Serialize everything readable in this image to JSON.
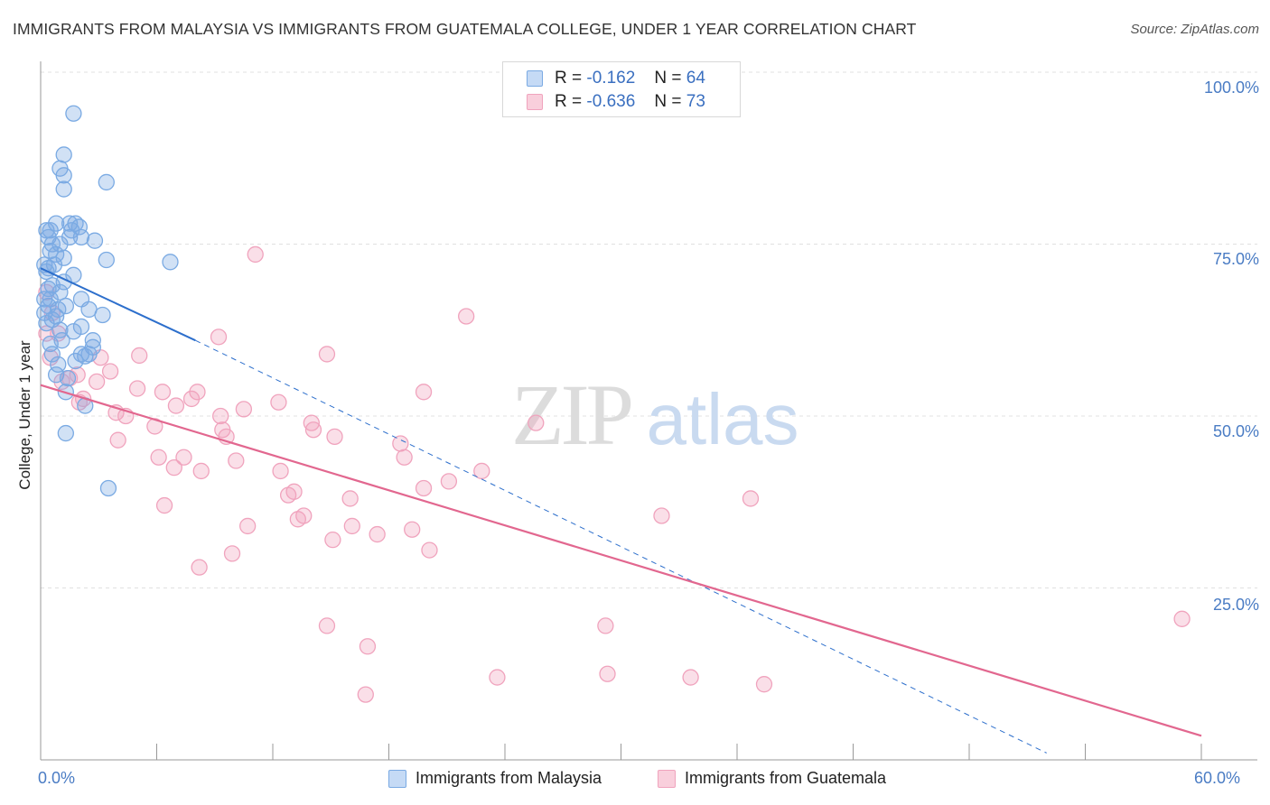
{
  "title": "IMMIGRANTS FROM MALAYSIA VS IMMIGRANTS FROM GUATEMALA COLLEGE, UNDER 1 YEAR CORRELATION CHART",
  "source": "Source: ZipAtlas.com",
  "watermark": {
    "zip": "ZIP",
    "atlas": "atlas"
  },
  "legend_top": [
    {
      "r_label": "R =",
      "r_value": "-0.162",
      "n_label": "N =",
      "n_value": "64"
    },
    {
      "r_label": "R =",
      "r_value": "-0.636",
      "n_label": "N =",
      "n_value": "73"
    }
  ],
  "chart_data": {
    "type": "scatter",
    "xlabel": "",
    "ylabel": "College, Under 1 year",
    "xlim": [
      0,
      60
    ],
    "ylim": [
      0,
      100
    ],
    "x_tick_labels": [
      "0.0%",
      "60.0%"
    ],
    "y_tick_labels": [
      "100.0%",
      "75.0%",
      "50.0%",
      "25.0%"
    ],
    "y_ticks": [
      100,
      75,
      50,
      25
    ],
    "grid": true,
    "legend_position": "bottom",
    "series": [
      {
        "name": "Immigrants from Malaysia",
        "color": "#7aaae3",
        "line_color": "#2d6fcc",
        "r": -0.162,
        "n": 64,
        "trend": {
          "x0": 0,
          "y0": 71.5,
          "x1": 8,
          "y1": 61.0,
          "dash_x1": 52,
          "dash_y1": 1.0
        },
        "points": [
          [
            1.7,
            94
          ],
          [
            1.2,
            88
          ],
          [
            1.0,
            86
          ],
          [
            1.2,
            85
          ],
          [
            1.2,
            83
          ],
          [
            3.4,
            84
          ],
          [
            0.3,
            77
          ],
          [
            0.5,
            77
          ],
          [
            0.8,
            78
          ],
          [
            1.5,
            78
          ],
          [
            1.8,
            78
          ],
          [
            2.0,
            77.5
          ],
          [
            1.6,
            77
          ],
          [
            0.4,
            76
          ],
          [
            0.6,
            75
          ],
          [
            1.0,
            75
          ],
          [
            1.5,
            76
          ],
          [
            2.1,
            76
          ],
          [
            2.8,
            75.5
          ],
          [
            0.5,
            74
          ],
          [
            0.8,
            73.5
          ],
          [
            1.2,
            73
          ],
          [
            3.4,
            72.7
          ],
          [
            6.7,
            72.4
          ],
          [
            0.2,
            72
          ],
          [
            0.4,
            71.5
          ],
          [
            0.7,
            72
          ],
          [
            1.7,
            70.5
          ],
          [
            0.3,
            71
          ],
          [
            1.2,
            69.5
          ],
          [
            0.6,
            69
          ],
          [
            1.0,
            68
          ],
          [
            2.1,
            67
          ],
          [
            0.5,
            67
          ],
          [
            0.4,
            66
          ],
          [
            0.9,
            65.5
          ],
          [
            1.3,
            66
          ],
          [
            2.5,
            65.5
          ],
          [
            3.2,
            64.7
          ],
          [
            0.2,
            65
          ],
          [
            0.6,
            64
          ],
          [
            2.1,
            63
          ],
          [
            1.0,
            62.5
          ],
          [
            1.7,
            62.3
          ],
          [
            2.7,
            61
          ],
          [
            0.5,
            60.5
          ],
          [
            2.7,
            60
          ],
          [
            2.1,
            59
          ],
          [
            2.5,
            59
          ],
          [
            2.3,
            58.7
          ],
          [
            0.9,
            57.5
          ],
          [
            0.8,
            56
          ],
          [
            1.4,
            55.5
          ],
          [
            1.3,
            53.5
          ],
          [
            2.3,
            51.5
          ],
          [
            1.3,
            47.5
          ],
          [
            3.5,
            39.5
          ],
          [
            0.4,
            68.5
          ],
          [
            0.2,
            67
          ],
          [
            0.8,
            64.5
          ],
          [
            0.3,
            63.5
          ],
          [
            1.1,
            61
          ],
          [
            0.6,
            59
          ],
          [
            1.8,
            58
          ]
        ]
      },
      {
        "name": "Immigrants from Guatemala",
        "color": "#f0a3bd",
        "line_color": "#e2678f",
        "r": -0.636,
        "n": 73,
        "trend": {
          "x0": 0,
          "y0": 54.5,
          "x1": 60,
          "y1": 3.5
        },
        "points": [
          [
            0.3,
            68
          ],
          [
            0.6,
            65
          ],
          [
            0.9,
            62
          ],
          [
            11.1,
            73.5
          ],
          [
            22.0,
            64.5
          ],
          [
            9.2,
            61.5
          ],
          [
            0.5,
            58.5
          ],
          [
            3.1,
            58.5
          ],
          [
            5.1,
            58.8
          ],
          [
            14.8,
            59
          ],
          [
            3.6,
            56.5
          ],
          [
            1.9,
            56
          ],
          [
            1.5,
            55.5
          ],
          [
            1.1,
            55
          ],
          [
            2.9,
            55
          ],
          [
            5.0,
            54
          ],
          [
            6.3,
            53.5
          ],
          [
            8.1,
            53.5
          ],
          [
            19.8,
            53.5
          ],
          [
            7.8,
            52.5
          ],
          [
            2.2,
            52.5
          ],
          [
            2.0,
            52
          ],
          [
            12.3,
            52
          ],
          [
            10.5,
            51
          ],
          [
            7.0,
            51.5
          ],
          [
            4.4,
            50
          ],
          [
            3.9,
            50.5
          ],
          [
            9.3,
            50
          ],
          [
            9.4,
            48
          ],
          [
            14.0,
            49
          ],
          [
            14.1,
            48
          ],
          [
            25.6,
            49
          ],
          [
            5.9,
            48.5
          ],
          [
            9.6,
            47
          ],
          [
            15.2,
            47
          ],
          [
            4.0,
            46.5
          ],
          [
            18.6,
            46
          ],
          [
            18.8,
            44
          ],
          [
            6.1,
            44
          ],
          [
            7.4,
            44
          ],
          [
            10.1,
            43.5
          ],
          [
            6.9,
            42.5
          ],
          [
            8.3,
            42
          ],
          [
            12.4,
            42
          ],
          [
            22.8,
            42
          ],
          [
            21.1,
            40.5
          ],
          [
            19.8,
            39.5
          ],
          [
            13.1,
            39
          ],
          [
            12.8,
            38.5
          ],
          [
            16.0,
            38
          ],
          [
            36.7,
            38
          ],
          [
            6.4,
            37
          ],
          [
            13.6,
            35.5
          ],
          [
            13.3,
            35
          ],
          [
            32.1,
            35.5
          ],
          [
            10.7,
            34
          ],
          [
            16.1,
            34
          ],
          [
            19.2,
            33.5
          ],
          [
            17.4,
            32.8
          ],
          [
            15.1,
            32
          ],
          [
            20.1,
            30.5
          ],
          [
            9.9,
            30
          ],
          [
            8.2,
            28
          ],
          [
            14.8,
            19.5
          ],
          [
            29.2,
            19.5
          ],
          [
            16.9,
            16.5
          ],
          [
            59.0,
            20.5
          ],
          [
            23.6,
            12
          ],
          [
            29.3,
            12.5
          ],
          [
            33.6,
            12
          ],
          [
            37.4,
            11
          ],
          [
            16.8,
            9.5
          ],
          [
            0.3,
            62
          ]
        ]
      }
    ]
  }
}
